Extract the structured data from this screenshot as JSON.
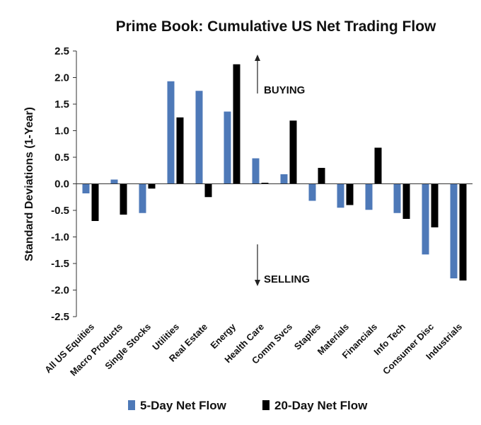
{
  "chart_data": {
    "type": "bar",
    "title": "Prime Book: Cumulative US Net Trading Flow",
    "xlabel": "",
    "ylabel": "Standard Deviations (1-Year)",
    "ylim": [
      -2.5,
      2.5
    ],
    "yticks": [
      2.5,
      2.0,
      1.5,
      1.0,
      0.5,
      0.0,
      -0.5,
      -1.0,
      -1.5,
      -2.0,
      -2.5
    ],
    "ytick_labels": [
      "2.5",
      "2.0",
      "1.5",
      "1.0",
      "0.5",
      "0.0",
      "-0.5",
      "-1.0",
      "-1.5",
      "-2.0",
      "-2.5"
    ],
    "grid": false,
    "legend_position": "bottom",
    "categories": [
      "All US Equities",
      "Macro Products",
      "Single Stocks",
      "Utilities",
      "Real Estate",
      "Energy",
      "Health Care",
      "Comm Svcs",
      "Staples",
      "Materials",
      "Financials",
      "Info Tech",
      "Consumer Disc",
      "Industrials"
    ],
    "series": [
      {
        "name": "5-Day Net Flow",
        "color": "#4e79b8",
        "values": [
          -0.18,
          0.08,
          -0.55,
          1.93,
          1.75,
          1.36,
          0.48,
          0.18,
          -0.32,
          -0.45,
          -0.49,
          -0.55,
          -1.33,
          -1.78
        ]
      },
      {
        "name": "20-Day Net Flow",
        "color": "#000000",
        "values": [
          -0.7,
          -0.58,
          -0.09,
          1.25,
          -0.25,
          2.25,
          0.02,
          1.19,
          0.3,
          -0.4,
          0.68,
          -0.66,
          -0.82,
          -1.82
        ]
      }
    ],
    "annotations": [
      {
        "text": "BUYING",
        "arrow": "up"
      },
      {
        "text": "SELLING",
        "arrow": "down"
      }
    ]
  }
}
